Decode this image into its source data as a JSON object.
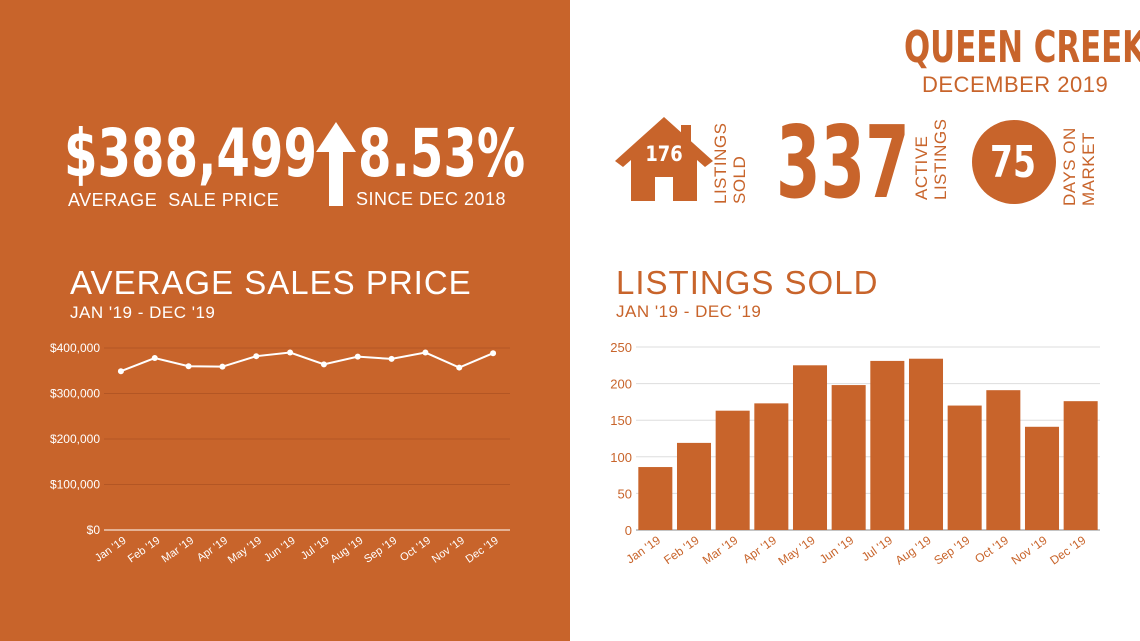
{
  "colors": {
    "accent": "#C8642B",
    "white": "#FFFFFF"
  },
  "header": {
    "city": "QUEEN CREEK",
    "period": "DECEMBER 2019"
  },
  "stats": {
    "average_price": "$388,499",
    "average_price_label": "AVERAGE  SALE PRICE",
    "change_icon": "arrow-up-icon",
    "change_percent": "8.53%",
    "change_label": "SINCE DEC 2018",
    "listings_sold_icon": "house-icon",
    "listings_sold_value": "176",
    "listings_sold_label_1": "LISTINGS",
    "listings_sold_label_2": "SOLD",
    "active_listings_value": "337",
    "active_listings_label_1": "ACTIVE",
    "active_listings_label_2": "LISTINGS",
    "days_on_market_value": "75",
    "days_on_market_label_1": "DAYS ON",
    "days_on_market_label_2": "MARKET"
  },
  "chart_data": [
    {
      "type": "line",
      "title": "AVERAGE SALES PRICE",
      "subtitle": "JAN '19 - DEC '19",
      "categories": [
        "Jan '19",
        "Feb '19",
        "Mar '19",
        "Apr '19",
        "May '19",
        "Jun '19",
        "Jul '19",
        "Aug '19",
        "Sep '19",
        "Oct '19",
        "Nov '19",
        "Dec '19"
      ],
      "values": [
        349000,
        378000,
        360000,
        359000,
        382000,
        390000,
        364000,
        381000,
        376000,
        390000,
        357000,
        388499
      ],
      "yticks": [
        "$0",
        "$100,000",
        "$200,000",
        "$300,000",
        "$400,000"
      ],
      "ylim": [
        0,
        400000
      ],
      "grid": true
    },
    {
      "type": "bar",
      "title": "LISTINGS SOLD",
      "subtitle": "JAN '19 - DEC '19",
      "categories": [
        "Jan '19",
        "Feb '19",
        "Mar '19",
        "Apr '19",
        "May '19",
        "Jun '19",
        "Jul '19",
        "Aug '19",
        "Sep '19",
        "Oct '19",
        "Nov '19",
        "Dec '19"
      ],
      "values": [
        86,
        119,
        163,
        173,
        225,
        198,
        231,
        234,
        170,
        191,
        141,
        176
      ],
      "yticks": [
        "0",
        "50",
        "100",
        "150",
        "200",
        "250"
      ],
      "ylim": [
        0,
        250
      ],
      "grid": true
    }
  ]
}
